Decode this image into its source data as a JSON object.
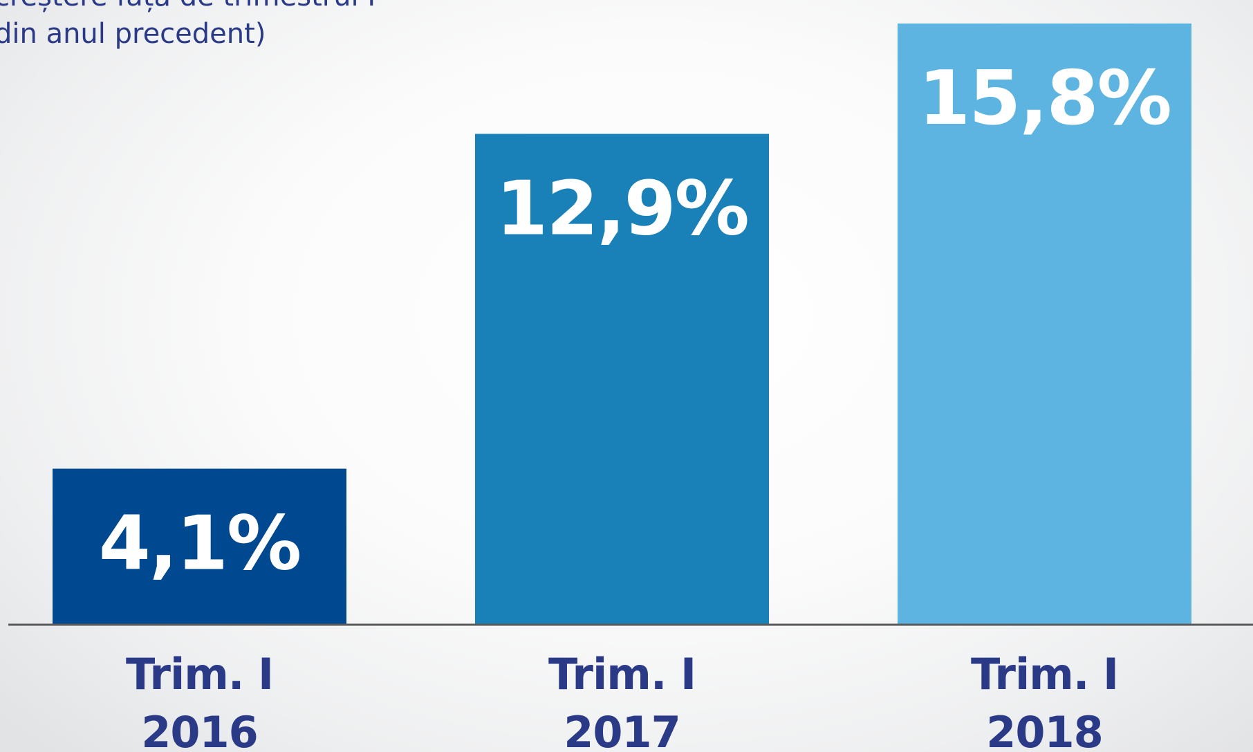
{
  "subtitle": "creștere față de trimestrul I\ndin anul precedent)",
  "chart_data": {
    "type": "bar",
    "categories": [
      [
        "Trim. I",
        "2016"
      ],
      [
        "Trim. I",
        "2017"
      ],
      [
        "Trim. I",
        "2018"
      ]
    ],
    "values": [
      4.1,
      12.9,
      15.8
    ],
    "value_labels": [
      "4,1%",
      "12,9%",
      "15,8%"
    ],
    "unit": "%",
    "ylim": [
      0,
      16.2
    ],
    "grid": false,
    "legend": "none",
    "colors": [
      "#004990",
      "#1a81b8",
      "#5eb4e1"
    ],
    "baseline_color": "#5a5a5a"
  }
}
